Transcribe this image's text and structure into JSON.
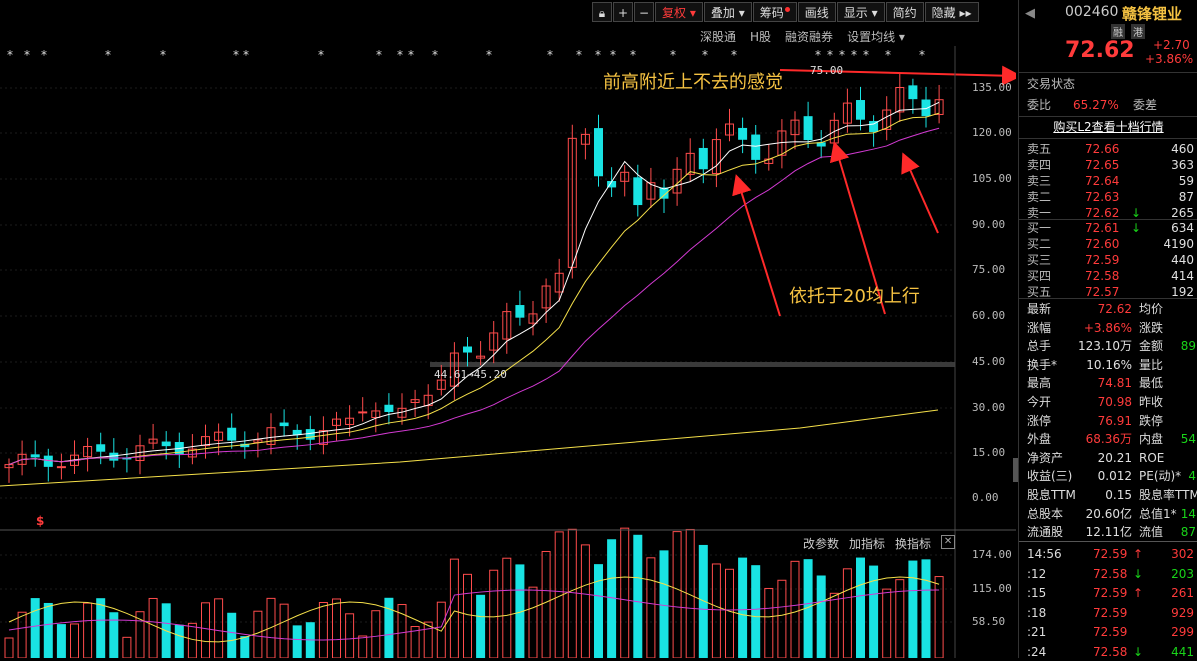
{
  "toolbar": {
    "buttons": [
      {
        "label": "复权",
        "active": true,
        "dropdown": true
      },
      {
        "label": "叠加",
        "dropdown": true
      },
      {
        "label": "筹码",
        "dot": true
      },
      {
        "label": "画线"
      },
      {
        "label": "显示",
        "dropdown": true
      },
      {
        "label": "简约"
      },
      {
        "label": "隐藏"
      }
    ]
  },
  "subbar": {
    "items": [
      "深股通",
      "H股",
      "融资融券",
      "设置均线"
    ]
  },
  "stock": {
    "code": "002460",
    "name": "赣锋锂业",
    "tag1": "融",
    "tag2": "港",
    "price": "72.62",
    "change": "+2.70",
    "change_pct": "+3.86%"
  },
  "chart": {
    "y_labels": [
      "135.00",
      "120.00",
      "105.00",
      "90.00",
      "75.00",
      "60.00",
      "45.00",
      "30.00",
      "15.00",
      "0.00"
    ],
    "vol_labels": [
      "174.00",
      "115.00",
      "58.50"
    ],
    "price_tag1": "44.61→45.20",
    "price_tag2": "75.00",
    "annotation1": "前高附近上不去的感觉",
    "annotation2": "依托于20均上行",
    "vol_buttons": [
      "改参数",
      "加指标",
      "换指标"
    ],
    "dollar": "$"
  },
  "panel": {
    "status_label": "交易状态",
    "weibi_label": "委比",
    "weibi_value": "65.27%",
    "weicha_label": "委差",
    "l2_link": "购买L2查看十档行情",
    "asks": [
      {
        "label": "卖五",
        "price": "72.66",
        "vol": "460"
      },
      {
        "label": "卖四",
        "price": "72.65",
        "vol": "363"
      },
      {
        "label": "卖三",
        "price": "72.64",
        "vol": "59"
      },
      {
        "label": "卖二",
        "price": "72.63",
        "vol": "87"
      },
      {
        "label": "卖一",
        "price": "72.62",
        "vol": "265",
        "arrow": "↓"
      }
    ],
    "bids": [
      {
        "label": "买一",
        "price": "72.61",
        "vol": "634",
        "arrow": "↓"
      },
      {
        "label": "买二",
        "price": "72.60",
        "vol": "4190"
      },
      {
        "label": "买三",
        "price": "72.59",
        "vol": "440"
      },
      {
        "label": "买四",
        "price": "72.58",
        "vol": "414"
      },
      {
        "label": "买五",
        "price": "72.57",
        "vol": "192"
      }
    ],
    "stats": [
      {
        "l": "最新",
        "v": "72.62",
        "c": "red",
        "l2": "均价",
        "v2": ""
      },
      {
        "l": "涨幅",
        "v": "+3.86%",
        "c": "red",
        "l2": "涨跌",
        "v2": ""
      },
      {
        "l": "总手",
        "v": "123.10万",
        "c": "white",
        "l2": "金额",
        "v2": "89"
      },
      {
        "l": "换手*",
        "v": "10.16%",
        "c": "white",
        "l2": "量比",
        "v2": ""
      },
      {
        "l": "最高",
        "v": "74.81",
        "c": "red",
        "l2": "最低",
        "v2": ""
      },
      {
        "l": "今开",
        "v": "70.98",
        "c": "red",
        "l2": "昨收",
        "v2": ""
      },
      {
        "l": "涨停",
        "v": "76.91",
        "c": "red",
        "l2": "跌停",
        "v2": ""
      },
      {
        "l": "外盘",
        "v": "68.36万",
        "c": "red",
        "l2": "内盘",
        "v2": "54"
      },
      {
        "l": "净资产",
        "v": "20.21",
        "c": "white",
        "l2": "ROE",
        "v2": ""
      },
      {
        "l": "收益(三)",
        "v": "0.012",
        "c": "white",
        "l2": "PE(动)*",
        "v2": "4"
      },
      {
        "l": "股息TTM",
        "v": "0.15",
        "c": "white",
        "l2": "股息率TTM",
        "v2": ""
      },
      {
        "l": "总股本",
        "v": "20.60亿",
        "c": "white",
        "l2": "总值1*",
        "v2": "14"
      },
      {
        "l": "流通股",
        "v": "12.11亿",
        "c": "white",
        "l2": "流值",
        "v2": "87"
      }
    ],
    "ticks": [
      {
        "t": "14:56",
        "p": "72.59",
        "a": "↑",
        "ac": "red",
        "v": "302",
        "vc": "red"
      },
      {
        "t": ":12",
        "p": "72.58",
        "a": "↓",
        "ac": "green",
        "v": "203",
        "vc": "green"
      },
      {
        "t": ":15",
        "p": "72.59",
        "a": "↑",
        "ac": "red",
        "v": "261",
        "vc": "red"
      },
      {
        "t": ":18",
        "p": "72.59",
        "a": "",
        "ac": "",
        "v": "929",
        "vc": "red"
      },
      {
        "t": ":21",
        "p": "72.59",
        "a": "",
        "ac": "",
        "v": "299",
        "vc": "red"
      },
      {
        "t": ":24",
        "p": "72.58",
        "a": "↓",
        "ac": "green",
        "v": "441",
        "vc": "green"
      }
    ]
  }
}
